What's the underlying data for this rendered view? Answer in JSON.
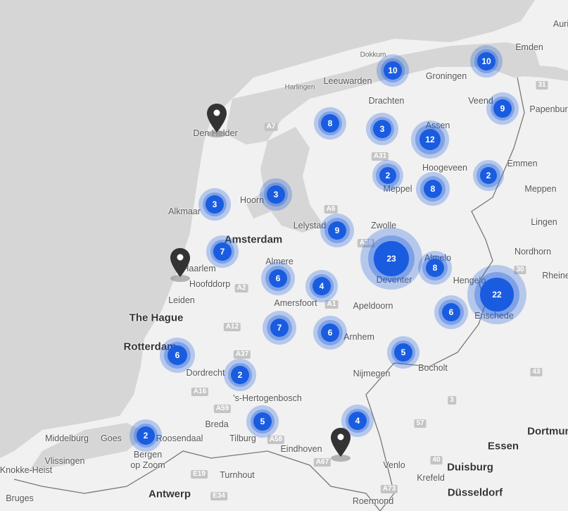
{
  "colors": {
    "cluster": "#1a5ce0",
    "pin": "#333333",
    "land": "#f1f1f1",
    "water": "#d6d6d6"
  },
  "labels": [
    "Emden",
    "Auri",
    "Dokkum",
    "Leeuwarden",
    "Groningen",
    "Harlingen",
    "Drachten",
    "Veend",
    "Papenburg",
    "Assen",
    "Den Helder",
    "Meppel",
    "Hoogeveen",
    "Emmen",
    "Meppen",
    "Hoorn",
    "Alkmaar",
    "Lingen",
    "Lelystad",
    "Zwolle",
    "Amsterdam",
    "Almere",
    "Haarlem",
    "Hoofddorp",
    "Almelo",
    "Nordhorn",
    "Rheine",
    "Hengelo",
    "Deventer",
    "Leiden",
    "Amersfoort",
    "Apeldoorn",
    "Enschede",
    "The Hague",
    "Arnhem",
    "Rotterdam",
    "Dordrecht",
    "Bocholt",
    "Nijmegen",
    "'s-Hertogenbosch",
    "Breda",
    "Tilburg",
    "Roosendaal",
    "Middelburg",
    "Goes",
    "Bergen",
    "op Zoom",
    "Vlissingen",
    "Knokke-Heist",
    "Eindhoven",
    "Essen",
    "Dortmund",
    "Duisburg",
    "Venlo",
    "Krefeld",
    "Turnhout",
    "Antwerp",
    "Bruges",
    "Roermond",
    "Düsseldorf"
  ],
  "roads": [
    "A7",
    "A6",
    "A1",
    "A12",
    "A2",
    "A28",
    "A37",
    "A31",
    "E19",
    "E34",
    "A67",
    "A73",
    "A16",
    "A59",
    "A58",
    "31",
    "30",
    "43",
    "57",
    "40",
    "3"
  ],
  "clusters": [
    10,
    10,
    9,
    8,
    3,
    12,
    2,
    2,
    8,
    3,
    3,
    9,
    23,
    8,
    7,
    6,
    4,
    22,
    6,
    7,
    6,
    5,
    6,
    2,
    5,
    4,
    2
  ],
  "pins": [
    "location-pin",
    "location-pin",
    "location-pin"
  ]
}
